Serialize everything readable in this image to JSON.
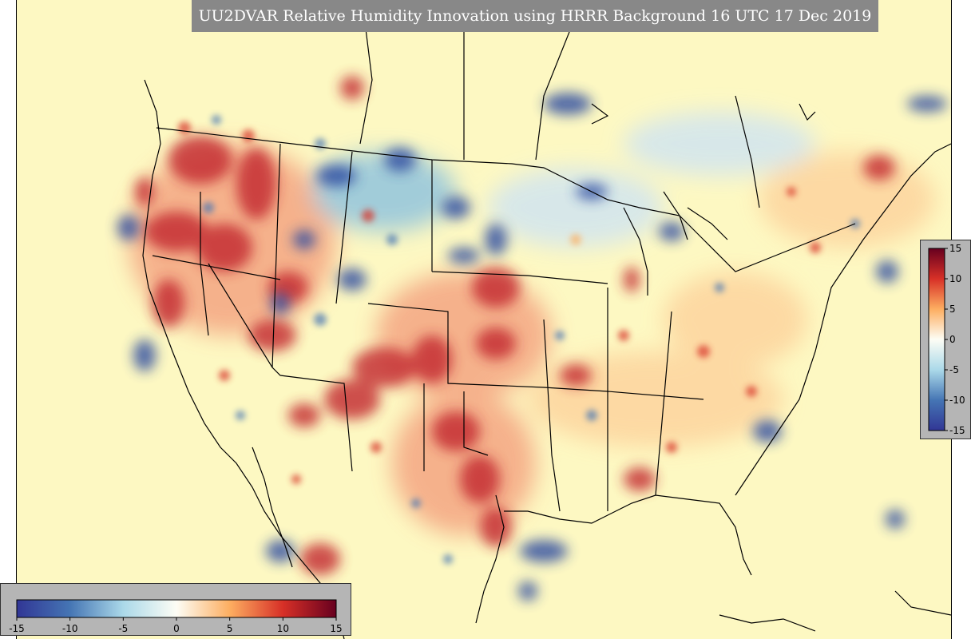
{
  "title": "UU2DVAR Relative Humidity Innovation using HRRR Background 16 UTC 17 Dec 2019",
  "colorbar": {
    "min": -15,
    "max": 15,
    "horizontal_ticks": [
      "-15",
      "-10",
      "-5",
      "0",
      "5",
      "10",
      "15"
    ],
    "vertical_ticks": [
      "15",
      "10",
      "5",
      "0",
      "-5",
      "-10",
      "-15"
    ],
    "stops": [
      {
        "value": -15,
        "color": "#313695"
      },
      {
        "value": -10,
        "color": "#4575b4"
      },
      {
        "value": -5,
        "color": "#abd9e9"
      },
      {
        "value": 0,
        "color": "#fdfdf5"
      },
      {
        "value": 5,
        "color": "#fdae61"
      },
      {
        "value": 10,
        "color": "#d73027"
      },
      {
        "value": 15,
        "color": "#67001f"
      }
    ]
  },
  "colors": {
    "background": "#fdf8c2",
    "panel": "#b5b5b5",
    "title_bar": "#888888",
    "dry": "#c2272d",
    "moist": "#2c4aa0"
  }
}
